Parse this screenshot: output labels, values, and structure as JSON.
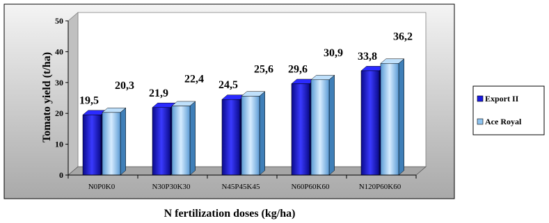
{
  "chart_data": {
    "type": "bar",
    "categories": [
      "N0P0K0",
      "N30P30K30",
      "N45P45K45",
      "N60P60K60",
      "N120P60K60"
    ],
    "series": [
      {
        "name": "Export II",
        "values": [
          19.5,
          21.9,
          24.5,
          29.6,
          33.8
        ],
        "labels": [
          "19,5",
          "21,9",
          "24,5",
          "29,6",
          "33,8"
        ],
        "color": "#1a1ae0"
      },
      {
        "name": "Ace Royal",
        "values": [
          20.3,
          22.4,
          25.6,
          30.9,
          36.2
        ],
        "labels": [
          "20,3",
          "22,4",
          "25,6",
          "30,9",
          "36,2"
        ],
        "color": "#8ec4f0"
      }
    ],
    "title": "",
    "xlabel": "N fertilization doses (kg/ha)",
    "ylabel": "Tomato yield (t/ha)",
    "ylim": [
      0,
      50
    ],
    "yticks": [
      0,
      10,
      20,
      30,
      40,
      50
    ],
    "grid": false,
    "legend_position": "right",
    "style": "3d-clustered-column",
    "colors": {
      "plot_background": "#d9d9d9",
      "floor": "#a6a6a6",
      "frame": "#000000"
    }
  }
}
